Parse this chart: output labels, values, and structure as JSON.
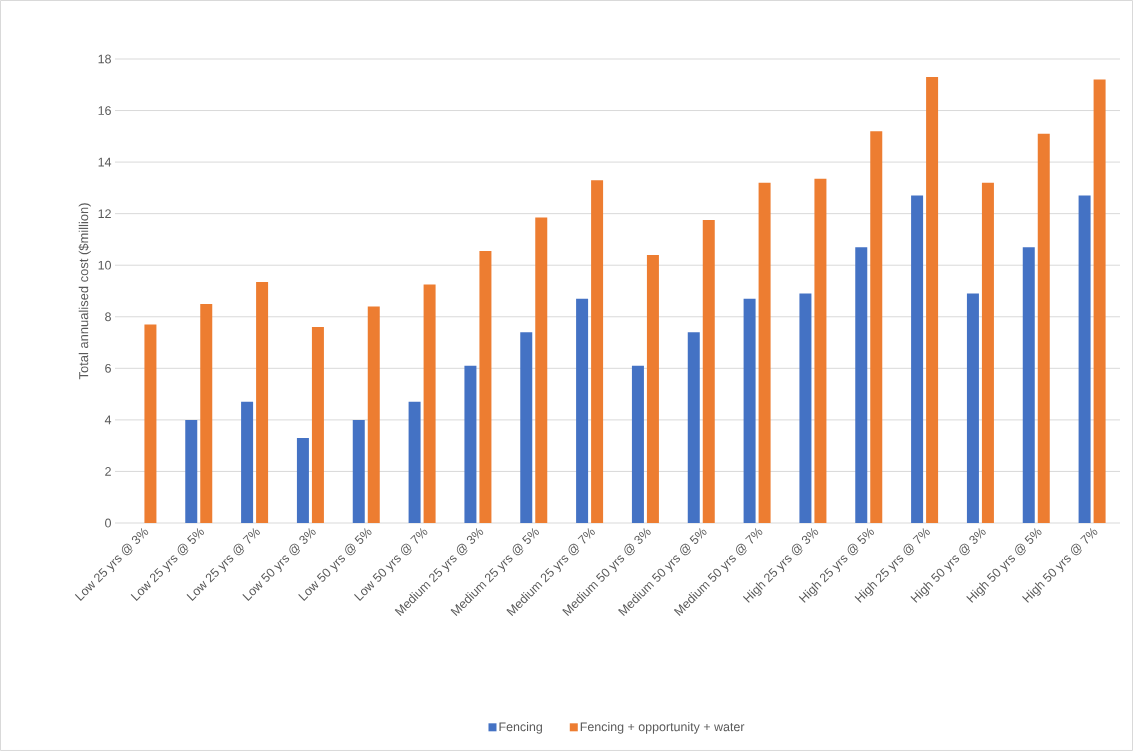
{
  "chart_data": {
    "type": "bar",
    "ylabel": "Total annualised cost ($million)",
    "categories": [
      "Low 25 yrs @ 3%",
      "Low 25 yrs @ 5%",
      "Low 25 yrs @ 7%",
      "Low 50 yrs @ 3%",
      "Low 50 yrs @ 5%",
      "Low 50 yrs @ 7%",
      "Medium 25 yrs @ 3%",
      "Medium 25 yrs @ 5%",
      "Medium 25 yrs @ 7%",
      "Medium 50 yrs @ 3%",
      "Medium 50 yrs @ 5%",
      "Medium 50 yrs @ 7%",
      "High 25 yrs @ 3%",
      "High 25 yrs @ 5%",
      "High 25 yrs @ 7%",
      "High 50 yrs @ 3%",
      "High 50 yrs @ 5%",
      "High 50 yrs @ 7%"
    ],
    "series": [
      {
        "name": "Fencing",
        "color": "#4472c4",
        "values": [
          null,
          4.0,
          4.7,
          3.3,
          4.0,
          4.7,
          6.1,
          7.4,
          8.7,
          6.1,
          7.4,
          8.7,
          8.9,
          10.7,
          12.7,
          8.9,
          10.7,
          12.7
        ]
      },
      {
        "name": "Fencing + opportunity + water",
        "color": "#ed7d31",
        "values": [
          7.7,
          8.5,
          9.35,
          7.6,
          8.4,
          9.25,
          10.55,
          11.85,
          13.3,
          10.4,
          11.75,
          13.2,
          13.35,
          15.2,
          17.3,
          13.2,
          15.1,
          17.2
        ]
      }
    ],
    "ylim": [
      0,
      18
    ],
    "yticks": [
      0,
      2,
      4,
      6,
      8,
      10,
      12,
      14,
      16,
      18
    ],
    "grid": "y",
    "legend": "bottom"
  }
}
